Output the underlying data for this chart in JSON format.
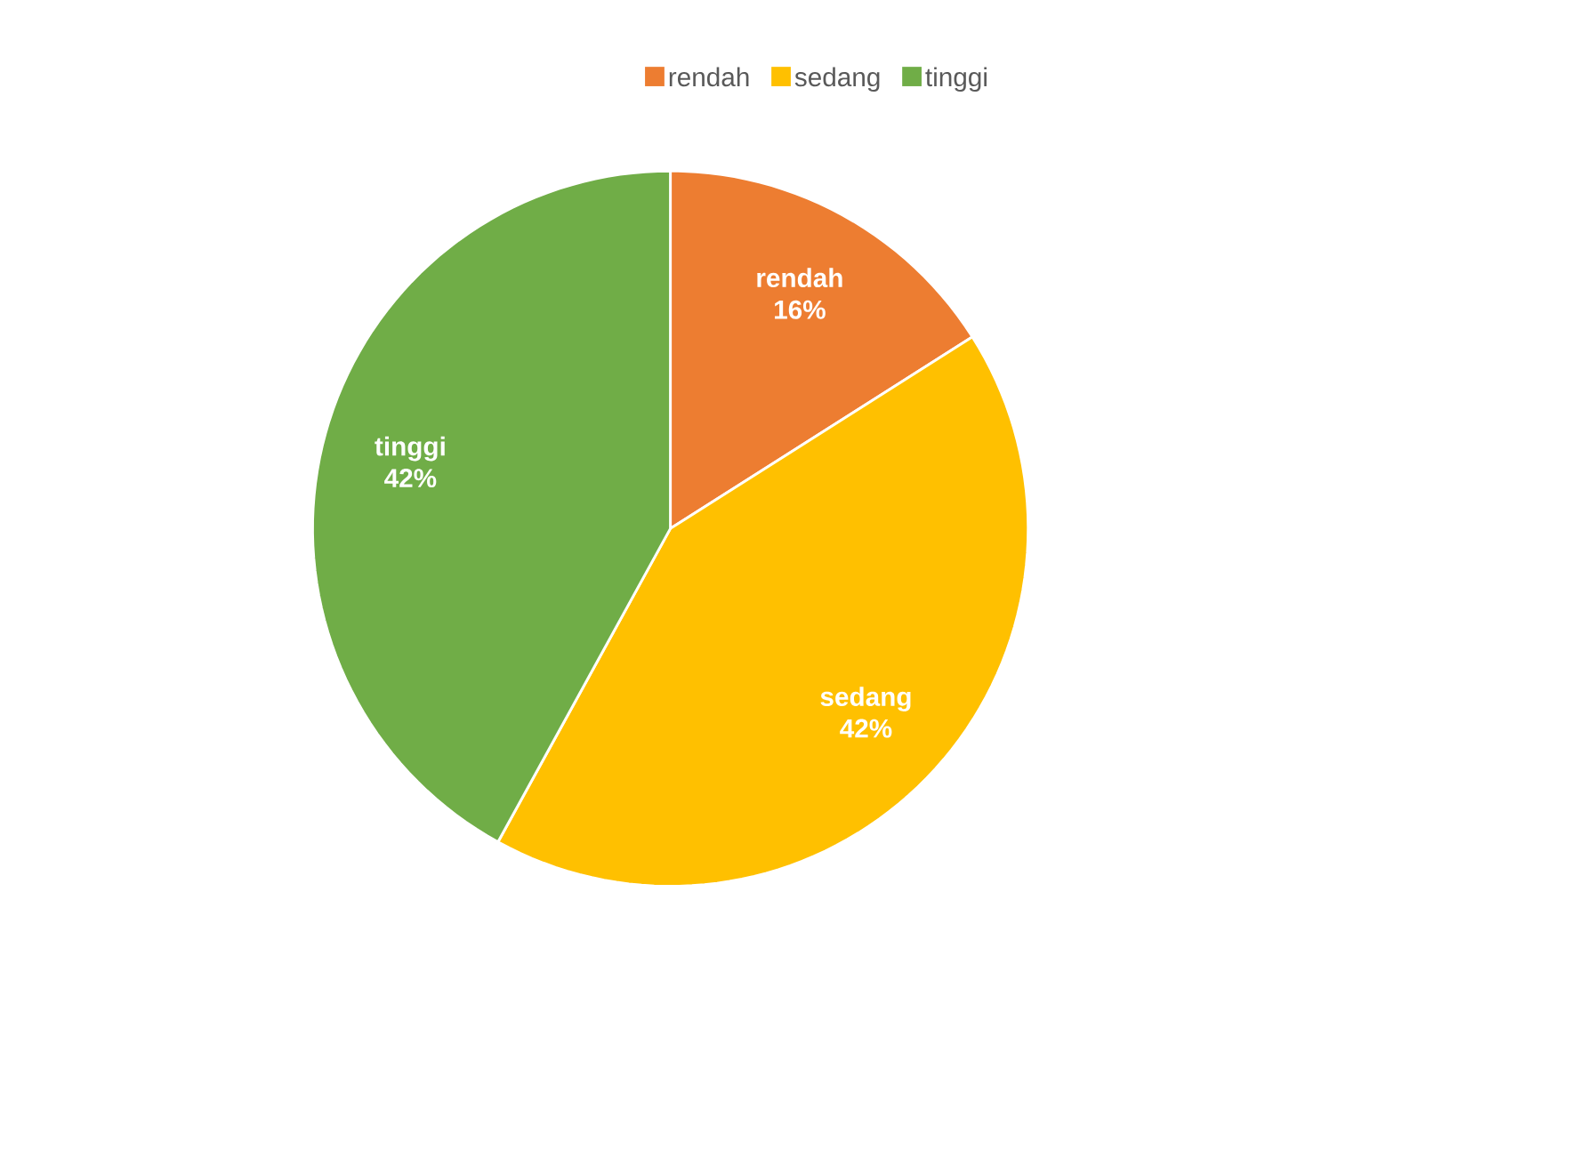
{
  "chart_data": {
    "type": "pie",
    "categories": [
      "rendah",
      "sedang",
      "tinggi"
    ],
    "values": [
      16,
      42,
      42
    ],
    "value_labels": [
      "16%",
      "42%",
      "42%"
    ],
    "colors": [
      "#ed7d31",
      "#ffc000",
      "#70ad47"
    ],
    "legend": "top"
  }
}
